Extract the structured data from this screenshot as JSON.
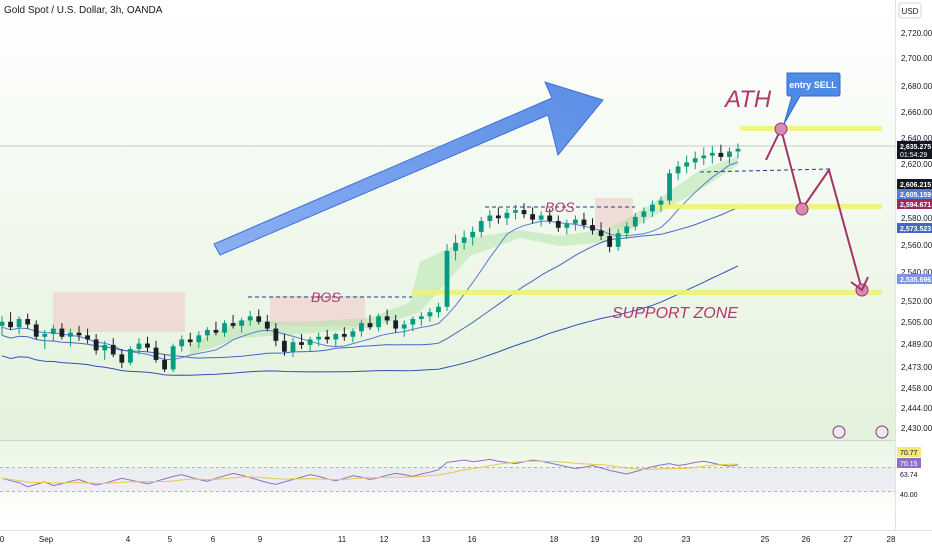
{
  "chart_data": {
    "type": "candlestick",
    "title": "Gold Spot / U.S. Dollar, 3h, OANDA",
    "currency": "USD",
    "y_ticks": [
      "2,720.000",
      "2,700.000",
      "2,680.000",
      "2,660.000",
      "2,640.000",
      "2,620.000",
      "2,600.000",
      "2,580.000",
      "2,560.000",
      "2,540.000",
      "2,520.000",
      "2,505.000",
      "2,489.000",
      "2,473.000",
      "2,458.000",
      "2,444.000",
      "2,430.000"
    ],
    "x_ticks": [
      "0",
      "Sep",
      "4",
      "5",
      "6",
      "9",
      "11",
      "12",
      "13",
      "16",
      "18",
      "19",
      "20",
      "23",
      "25",
      "26",
      "27",
      "28"
    ],
    "ylim": [
      2430,
      2730
    ],
    "price_labels": [
      {
        "value": "2,635.275",
        "sub": "01:54:29",
        "color": "#131722",
        "text_color": "#ffffff"
      },
      {
        "value": "2,606.215",
        "color": "#131722",
        "text_color": "#ffffff"
      },
      {
        "value": "2,605.159",
        "color": "#5b7bd5",
        "text_color": "#ffffff"
      },
      {
        "value": "2,594.671",
        "color": "#9c2a5a",
        "text_color": "#ffffff"
      },
      {
        "value": "2,573.523",
        "color": "#4966c2",
        "text_color": "#ffffff"
      },
      {
        "value": "2,535.696",
        "color": "#7a94e0",
        "text_color": "#ffffff"
      }
    ],
    "annotations": [
      "BOS",
      "BOS",
      "ATH",
      "entry SELL",
      "SUPPORT ZONE"
    ],
    "levels": [
      {
        "name": "ath",
        "y": 2651
      },
      {
        "name": "mid",
        "y": 2598
      },
      {
        "name": "support",
        "y": 2528
      }
    ],
    "projection": [
      2620,
      2651,
      2598,
      2617,
      2528
    ],
    "candles": [
      [
        2505,
        2512,
        2498,
        2508
      ],
      [
        2508,
        2515,
        2502,
        2504
      ],
      [
        2504,
        2512,
        2499,
        2510
      ],
      [
        2510,
        2514,
        2503,
        2506
      ],
      [
        2506,
        2509,
        2495,
        2497
      ],
      [
        2497,
        2502,
        2488,
        2499
      ],
      [
        2499,
        2506,
        2494,
        2503
      ],
      [
        2503,
        2507,
        2495,
        2497
      ],
      [
        2497,
        2503,
        2490,
        2500
      ],
      [
        2500,
        2505,
        2494,
        2498
      ],
      [
        2498,
        2503,
        2492,
        2495
      ],
      [
        2495,
        2499,
        2484,
        2487
      ],
      [
        2487,
        2494,
        2480,
        2491
      ],
      [
        2491,
        2496,
        2482,
        2484
      ],
      [
        2484,
        2488,
        2474,
        2478
      ],
      [
        2478,
        2490,
        2476,
        2488
      ],
      [
        2488,
        2496,
        2484,
        2492
      ],
      [
        2492,
        2497,
        2486,
        2489
      ],
      [
        2489,
        2494,
        2478,
        2480
      ],
      [
        2480,
        2484,
        2471,
        2473
      ],
      [
        2473,
        2492,
        2471,
        2490
      ],
      [
        2490,
        2498,
        2486,
        2495
      ],
      [
        2495,
        2500,
        2490,
        2493
      ],
      [
        2493,
        2501,
        2489,
        2498
      ],
      [
        2498,
        2504,
        2494,
        2502
      ],
      [
        2502,
        2508,
        2498,
        2500
      ],
      [
        2500,
        2509,
        2497,
        2507
      ],
      [
        2507,
        2513,
        2503,
        2505
      ],
      [
        2505,
        2511,
        2500,
        2509
      ],
      [
        2509,
        2516,
        2505,
        2512
      ],
      [
        2512,
        2517,
        2506,
        2508
      ],
      [
        2508,
        2513,
        2501,
        2503
      ],
      [
        2503,
        2507,
        2490,
        2494
      ],
      [
        2494,
        2499,
        2483,
        2486
      ],
      [
        2486,
        2496,
        2482,
        2493
      ],
      [
        2493,
        2499,
        2488,
        2491
      ],
      [
        2491,
        2497,
        2486,
        2495
      ],
      [
        2495,
        2500,
        2490,
        2497
      ],
      [
        2497,
        2502,
        2492,
        2495
      ],
      [
        2495,
        2500,
        2490,
        2499
      ],
      [
        2499,
        2504,
        2494,
        2497
      ],
      [
        2497,
        2503,
        2493,
        2501
      ],
      [
        2501,
        2509,
        2497,
        2507
      ],
      [
        2507,
        2513,
        2502,
        2504
      ],
      [
        2504,
        2514,
        2501,
        2512
      ],
      [
        2512,
        2517,
        2506,
        2509
      ],
      [
        2509,
        2513,
        2500,
        2503
      ],
      [
        2503,
        2509,
        2497,
        2506
      ],
      [
        2506,
        2512,
        2501,
        2510
      ],
      [
        2510,
        2515,
        2505,
        2512
      ],
      [
        2512,
        2518,
        2508,
        2515
      ],
      [
        2515,
        2522,
        2511,
        2519
      ],
      [
        2519,
        2565,
        2516,
        2560
      ],
      [
        2560,
        2572,
        2553,
        2566
      ],
      [
        2566,
        2575,
        2561,
        2570
      ],
      [
        2570,
        2578,
        2564,
        2574
      ],
      [
        2574,
        2585,
        2570,
        2582
      ],
      [
        2582,
        2590,
        2577,
        2586
      ],
      [
        2586,
        2592,
        2580,
        2584
      ],
      [
        2584,
        2591,
        2579,
        2588
      ],
      [
        2588,
        2594,
        2583,
        2590
      ],
      [
        2590,
        2595,
        2584,
        2587
      ],
      [
        2587,
        2592,
        2580,
        2583
      ],
      [
        2583,
        2589,
        2578,
        2586
      ],
      [
        2586,
        2591,
        2580,
        2582
      ],
      [
        2582,
        2586,
        2574,
        2577
      ],
      [
        2577,
        2583,
        2572,
        2580
      ],
      [
        2580,
        2586,
        2575,
        2583
      ],
      [
        2583,
        2588,
        2576,
        2579
      ],
      [
        2579,
        2584,
        2572,
        2575
      ],
      [
        2575,
        2581,
        2568,
        2571
      ],
      [
        2571,
        2577,
        2559,
        2563
      ],
      [
        2563,
        2576,
        2560,
        2573
      ],
      [
        2573,
        2581,
        2569,
        2578
      ],
      [
        2578,
        2588,
        2575,
        2585
      ],
      [
        2585,
        2592,
        2580,
        2589
      ],
      [
        2589,
        2597,
        2585,
        2594
      ],
      [
        2594,
        2600,
        2589,
        2597
      ],
      [
        2597,
        2620,
        2594,
        2617
      ],
      [
        2617,
        2626,
        2612,
        2622
      ],
      [
        2622,
        2630,
        2617,
        2625
      ],
      [
        2625,
        2633,
        2620,
        2628
      ],
      [
        2628,
        2636,
        2623,
        2630
      ],
      [
        2630,
        2637,
        2624,
        2632
      ],
      [
        2632,
        2638,
        2626,
        2629
      ],
      [
        2629,
        2636,
        2624,
        2633
      ],
      [
        2633,
        2639,
        2628,
        2635
      ]
    ],
    "indicator": {
      "name": "RSI",
      "labels": [
        "70.77",
        "70.15",
        "63.74",
        "40.00"
      ],
      "values": [
        52,
        48,
        45,
        38,
        42,
        46,
        40,
        43,
        47,
        50,
        45,
        41,
        44,
        48,
        52,
        49,
        46,
        43,
        47,
        51,
        55,
        58,
        54,
        50,
        47,
        52,
        56,
        60,
        57,
        53,
        49,
        45,
        42,
        46,
        50,
        54,
        58,
        55,
        51,
        48,
        52,
        56,
        54,
        50,
        53,
        57,
        60,
        58,
        55,
        59,
        62,
        66,
        78,
        80,
        82,
        79,
        81,
        83,
        80,
        78,
        76,
        79,
        82,
        80,
        77,
        74,
        71,
        68,
        70,
        73,
        69,
        65,
        62,
        59,
        63,
        67,
        71,
        74,
        76,
        73,
        75,
        78,
        80,
        77,
        74,
        72,
        74
      ]
    }
  }
}
